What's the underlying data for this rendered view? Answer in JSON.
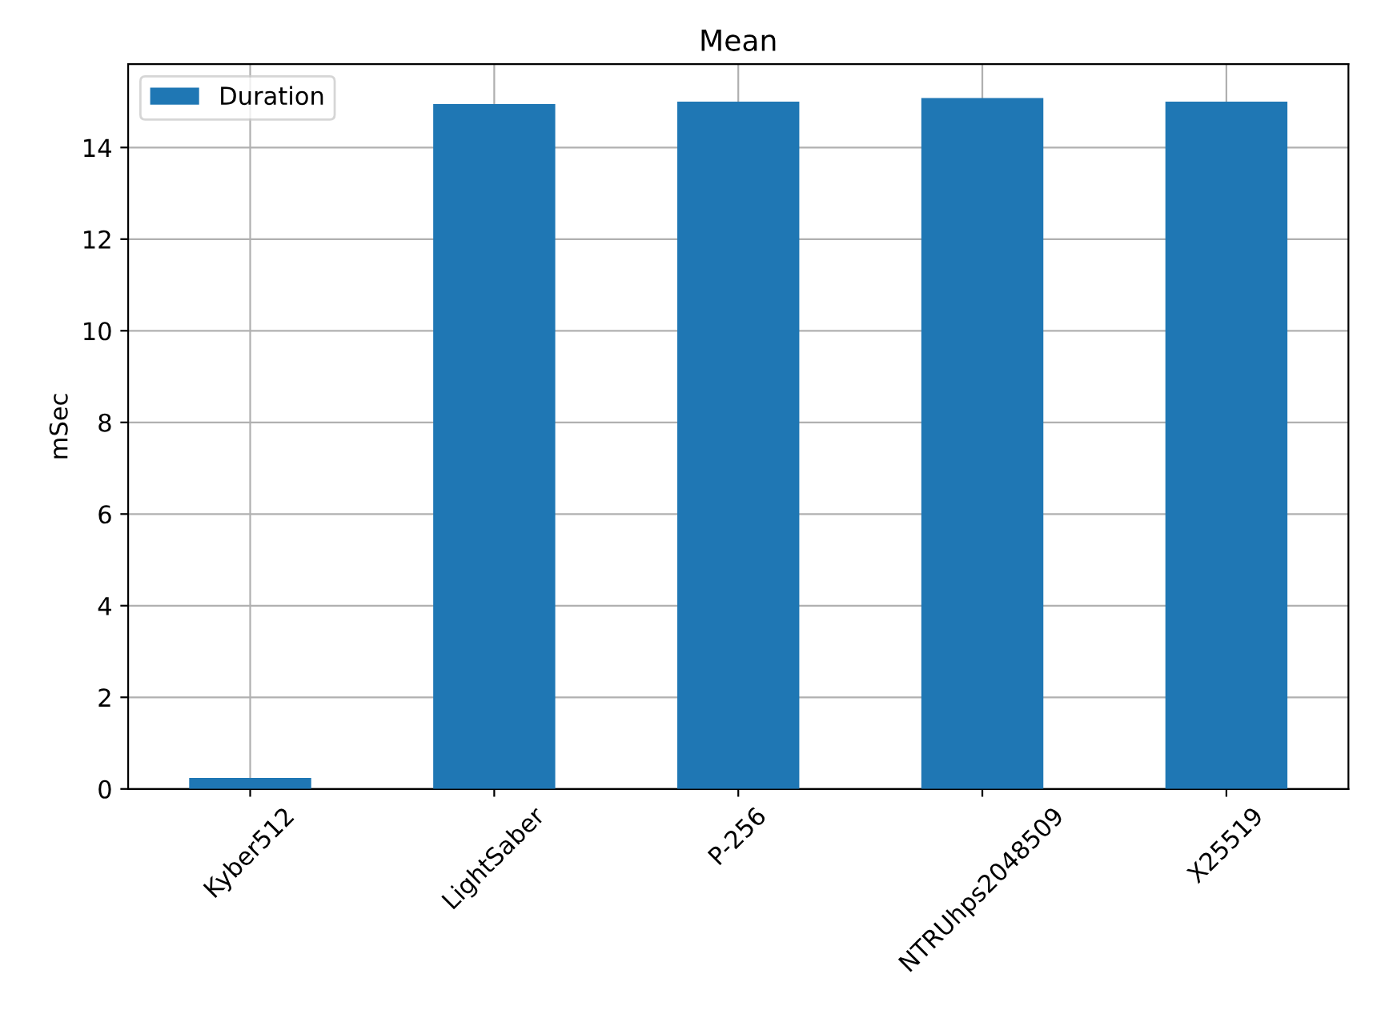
{
  "chart_data": {
    "type": "bar",
    "title": "Mean",
    "ylabel": "mSec",
    "categories": [
      "Kyber512",
      "LightSaber",
      "P-256",
      "NTRUhps2048509",
      "X25519"
    ],
    "series": [
      {
        "name": "Duration",
        "color": "#1f77b4",
        "values": [
          0.24,
          14.95,
          15.0,
          15.08,
          15.0
        ]
      }
    ],
    "ylim": [
      0,
      15.82
    ],
    "yticks": [
      0,
      2,
      4,
      6,
      8,
      10,
      12,
      14
    ],
    "grid": true,
    "legend": "top left"
  }
}
